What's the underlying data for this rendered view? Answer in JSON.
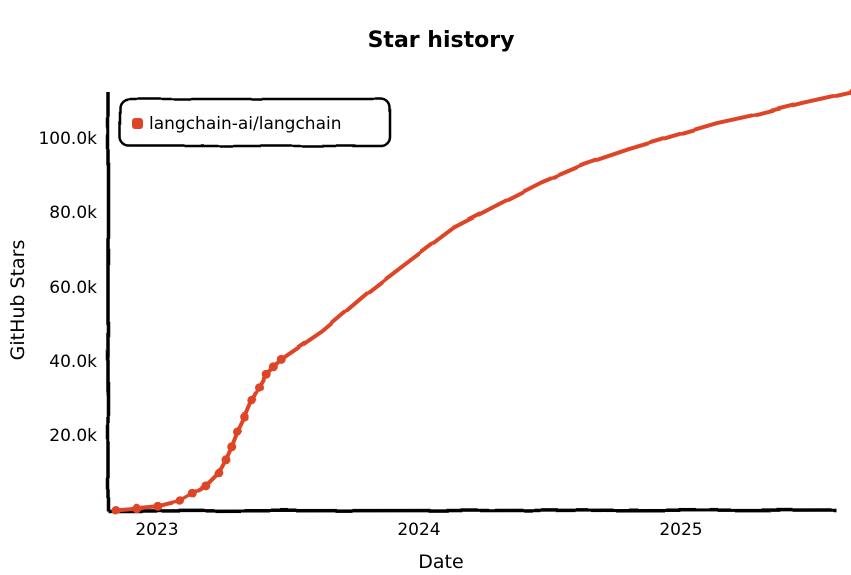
{
  "chart_data": {
    "type": "line",
    "title": "Star history",
    "xlabel": "Date",
    "ylabel": "GitHub Stars",
    "x_ticks": [
      "2023",
      "2024",
      "2025"
    ],
    "y_ticks": [
      "20.0k",
      "40.0k",
      "60.0k",
      "80.0k",
      "100.0k"
    ],
    "ylim": [
      0,
      115000
    ],
    "xlim": [
      "2022-10",
      "2025-08"
    ],
    "grid": false,
    "legend_position": "top-left",
    "series": [
      {
        "name": "langchain-ai/langchain",
        "color": "#dd4528",
        "points": [
          {
            "date": "2022-10-17",
            "stars": 0
          },
          {
            "date": "2022-11-15",
            "stars": 500
          },
          {
            "date": "2022-12-15",
            "stars": 1000
          },
          {
            "date": "2023-01-15",
            "stars": 2500
          },
          {
            "date": "2023-02-01",
            "stars": 4500
          },
          {
            "date": "2023-02-20",
            "stars": 6500
          },
          {
            "date": "2023-03-10",
            "stars": 10000
          },
          {
            "date": "2023-03-20",
            "stars": 13500
          },
          {
            "date": "2023-03-28",
            "stars": 17000
          },
          {
            "date": "2023-04-05",
            "stars": 21000
          },
          {
            "date": "2023-04-15",
            "stars": 25000
          },
          {
            "date": "2023-04-25",
            "stars": 29500
          },
          {
            "date": "2023-05-05",
            "stars": 33000
          },
          {
            "date": "2023-05-15",
            "stars": 36500
          },
          {
            "date": "2023-05-25",
            "stars": 38500
          },
          {
            "date": "2023-06-05",
            "stars": 40500
          },
          {
            "date": "2023-08-01",
            "stars": 48000
          },
          {
            "date": "2023-10-01",
            "stars": 58000
          },
          {
            "date": "2023-12-01",
            "stars": 67000
          },
          {
            "date": "2024-02-01",
            "stars": 76000
          },
          {
            "date": "2024-04-01",
            "stars": 82000
          },
          {
            "date": "2024-06-01",
            "stars": 88000
          },
          {
            "date": "2024-08-01",
            "stars": 93000
          },
          {
            "date": "2024-10-01",
            "stars": 97000
          },
          {
            "date": "2024-12-01",
            "stars": 100500
          },
          {
            "date": "2025-02-01",
            "stars": 104000
          },
          {
            "date": "2025-04-01",
            "stars": 106500
          },
          {
            "date": "2025-06-01",
            "stars": 109500
          },
          {
            "date": "2025-08-10",
            "stars": 112500
          }
        ]
      }
    ]
  }
}
